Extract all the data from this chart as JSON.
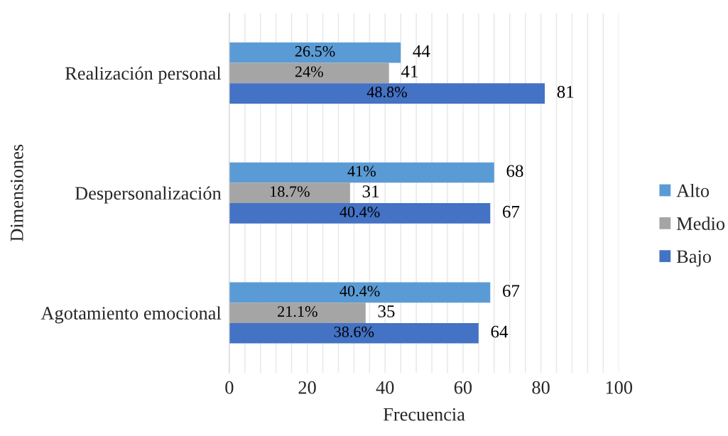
{
  "chart_data": {
    "type": "bar",
    "orientation": "horizontal",
    "categories": [
      "Realización personal",
      "Despersonalización",
      "Agotamiento emocional"
    ],
    "series": [
      {
        "name": "Alto",
        "color": "#5b9bd5",
        "values": [
          44,
          68,
          67
        ]
      },
      {
        "name": "Medio",
        "color": "#a5a5a5",
        "values": [
          41,
          31,
          35
        ]
      },
      {
        "name": "Bajo",
        "color": "#4472c4",
        "values": [
          81,
          67,
          64
        ]
      }
    ],
    "annotations": [
      "26.5%",
      "24%",
      "48.8%",
      "41%",
      "18.7%",
      "40.4%",
      "40.4%",
      "21.1%",
      "38.6%"
    ],
    "xlabel": "Frecuencia",
    "ylabel": "Dimensiones",
    "xlim": [
      0,
      100
    ],
    "xticks": [
      0,
      {
        "value": 4,
        "label": null
      },
      {
        "value": 8,
        "label": null
      },
      {
        "value": 12,
        "label": null
      },
      {
        "value": 16,
        "label": null
      },
      20,
      {
        "value": 24,
        "label": null
      },
      {
        "value": 28,
        "label": null
      },
      {
        "value": 32,
        "label": null
      },
      {
        "value": 36,
        "label": null
      },
      40,
      {
        "value": 44,
        "label": null
      },
      {
        "value": 48,
        "label": null
      },
      {
        "value": 52,
        "label": null
      },
      {
        "value": 56,
        "label": null
      },
      60,
      {
        "value": 64,
        "label": null
      },
      {
        "value": 68,
        "label": null
      },
      {
        "value": 72,
        "label": null
      },
      {
        "value": 76,
        "label": null
      },
      80,
      {
        "value": 84,
        "label": null
      },
      {
        "value": 88,
        "label": null
      },
      {
        "value": 92,
        "label": null
      },
      {
        "value": 96,
        "label": null
      },
      100
    ],
    "grid": "x",
    "legend": "right",
    "data_labels": true
  }
}
